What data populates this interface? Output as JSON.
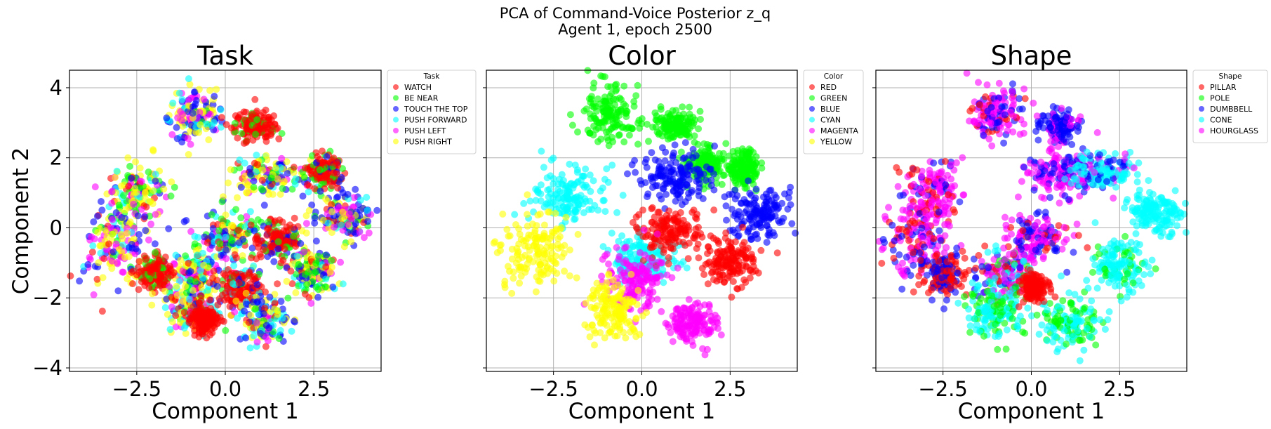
{
  "figure": {
    "title_line1": "PCA of Command-Voice Posterior z_q",
    "title_line2": "Agent 1, epoch 2500"
  },
  "chart_data": [
    {
      "type": "scatter",
      "title": "Task",
      "xlabel": "Component 1",
      "ylabel": "Component 2",
      "xlim": [
        -4.4,
        4.4
      ],
      "ylim": [
        -4.1,
        4.5
      ],
      "xticks": [
        -2.5,
        0.0,
        2.5
      ],
      "xtick_labels": [
        "−2.5",
        "0.0",
        "2.5"
      ],
      "yticks": [
        -4,
        -2,
        0,
        2,
        4
      ],
      "ytick_labels": [
        "−4",
        "−2",
        "0",
        "2",
        "4"
      ],
      "grid": true,
      "legend": {
        "title": "Task",
        "placement": "outside-upper-right",
        "entries": [
          {
            "label": "WATCH",
            "color": "#ff0000"
          },
          {
            "label": "BE NEAR",
            "color": "#00ff00"
          },
          {
            "label": "TOUCH THE TOP",
            "color": "#0000ff"
          },
          {
            "label": "PUSH FORWARD",
            "color": "#00ffff"
          },
          {
            "label": "PUSH LEFT",
            "color": "#ff00ff"
          },
          {
            "label": "PUSH RIGHT",
            "color": "#ffff00"
          }
        ]
      },
      "clusters": [
        {
          "cx": -0.9,
          "cy": 3.2,
          "sx": 0.35,
          "sy": 0.35,
          "mix": [
            0,
            1,
            3,
            1,
            2,
            4
          ]
        },
        {
          "cx": 0.9,
          "cy": 2.9,
          "sx": 0.3,
          "sy": 0.2,
          "mix": [
            6,
            1,
            0,
            0,
            0,
            0
          ]
        },
        {
          "cx": -2.5,
          "cy": 1.0,
          "sx": 0.4,
          "sy": 0.4,
          "mix": [
            1,
            2,
            1,
            1,
            1,
            3
          ]
        },
        {
          "cx": 1.2,
          "cy": 1.5,
          "sx": 0.5,
          "sy": 0.3,
          "mix": [
            1,
            2,
            3,
            1,
            1,
            4
          ]
        },
        {
          "cx": 2.8,
          "cy": 1.6,
          "sx": 0.25,
          "sy": 0.25,
          "mix": [
            5,
            2,
            1,
            0,
            0,
            0
          ]
        },
        {
          "cx": 3.3,
          "cy": 0.3,
          "sx": 0.45,
          "sy": 0.35,
          "mix": [
            1,
            1,
            3,
            1,
            2,
            3
          ]
        },
        {
          "cx": -3.1,
          "cy": -0.5,
          "sx": 0.45,
          "sy": 0.5,
          "mix": [
            1,
            1,
            2,
            2,
            3,
            3
          ]
        },
        {
          "cx": 0.1,
          "cy": -0.3,
          "sx": 0.4,
          "sy": 0.4,
          "mix": [
            1,
            2,
            2,
            2,
            1,
            2
          ]
        },
        {
          "cx": 1.5,
          "cy": -0.4,
          "sx": 0.3,
          "sy": 0.3,
          "mix": [
            5,
            1,
            1,
            0,
            0,
            0
          ]
        },
        {
          "cx": 2.5,
          "cy": -1.2,
          "sx": 0.3,
          "sy": 0.3,
          "mix": [
            1,
            2,
            2,
            1,
            1,
            3
          ]
        },
        {
          "cx": -0.8,
          "cy": -1.3,
          "sx": 0.35,
          "sy": 0.4,
          "mix": [
            1,
            1,
            1,
            2,
            2,
            3
          ]
        },
        {
          "cx": 0.4,
          "cy": -1.7,
          "sx": 0.3,
          "sy": 0.3,
          "mix": [
            5,
            1,
            1,
            1,
            0,
            0
          ]
        },
        {
          "cx": -2.0,
          "cy": -1.3,
          "sx": 0.25,
          "sy": 0.25,
          "mix": [
            4,
            1,
            0,
            0,
            0,
            0
          ]
        },
        {
          "cx": -1.0,
          "cy": -2.3,
          "sx": 0.35,
          "sy": 0.35,
          "mix": [
            1,
            1,
            1,
            2,
            1,
            3
          ]
        },
        {
          "cx": 1.1,
          "cy": -2.6,
          "sx": 0.35,
          "sy": 0.35,
          "mix": [
            1,
            1,
            3,
            2,
            1,
            3
          ]
        },
        {
          "cx": -0.6,
          "cy": -2.6,
          "sx": 0.2,
          "sy": 0.2,
          "mix": [
            4,
            0,
            0,
            0,
            0,
            0
          ]
        }
      ]
    },
    {
      "type": "scatter",
      "title": "Color",
      "xlabel": "Component 1",
      "ylabel": "",
      "xlim": [
        -4.4,
        4.4
      ],
      "ylim": [
        -4.1,
        4.5
      ],
      "xticks": [
        -2.5,
        0.0,
        2.5
      ],
      "xtick_labels": [
        "−2.5",
        "0.0",
        "2.5"
      ],
      "yticks": [
        -4,
        -2,
        0,
        2,
        4
      ],
      "ytick_labels": [],
      "grid": true,
      "legend": {
        "title": "Color",
        "placement": "outside-upper-right",
        "entries": [
          {
            "label": "RED",
            "color": "#ff0000"
          },
          {
            "label": "GREEN",
            "color": "#00ff00"
          },
          {
            "label": "BLUE",
            "color": "#0000ff"
          },
          {
            "label": "CYAN",
            "color": "#00ffff"
          },
          {
            "label": "MAGENTA",
            "color": "#ff00ff"
          },
          {
            "label": "YELLOW",
            "color": "#ffff00"
          }
        ]
      },
      "clusters": [
        {
          "cx": -0.9,
          "cy": 3.3,
          "sx": 0.4,
          "sy": 0.4,
          "mix": [
            0,
            1,
            0,
            0,
            0,
            0
          ]
        },
        {
          "cx": 0.9,
          "cy": 2.9,
          "sx": 0.3,
          "sy": 0.2,
          "mix": [
            0,
            1,
            0,
            0,
            0,
            0
          ]
        },
        {
          "cx": 1.8,
          "cy": 1.8,
          "sx": 0.3,
          "sy": 0.25,
          "mix": [
            0,
            1,
            0,
            0,
            0,
            0
          ]
        },
        {
          "cx": 2.9,
          "cy": 1.7,
          "sx": 0.2,
          "sy": 0.25,
          "mix": [
            0,
            1,
            0,
            0,
            0,
            0
          ]
        },
        {
          "cx": 1.0,
          "cy": 1.5,
          "sx": 0.55,
          "sy": 0.35,
          "mix": [
            0,
            0,
            1,
            0,
            0,
            0
          ]
        },
        {
          "cx": 3.3,
          "cy": 0.4,
          "sx": 0.45,
          "sy": 0.35,
          "mix": [
            0,
            0,
            1,
            0,
            0,
            0
          ]
        },
        {
          "cx": -2.1,
          "cy": 0.9,
          "sx": 0.5,
          "sy": 0.45,
          "mix": [
            0,
            0,
            0,
            1,
            0,
            0
          ]
        },
        {
          "cx": 0.1,
          "cy": -0.9,
          "sx": 0.45,
          "sy": 0.35,
          "mix": [
            0,
            0,
            0,
            1,
            0,
            0
          ]
        },
        {
          "cx": 0.8,
          "cy": -0.1,
          "sx": 0.5,
          "sy": 0.35,
          "mix": [
            1,
            0,
            0,
            0,
            0,
            0
          ]
        },
        {
          "cx": 2.5,
          "cy": -1.0,
          "sx": 0.35,
          "sy": 0.35,
          "mix": [
            1,
            0,
            0,
            0,
            0,
            0
          ]
        },
        {
          "cx": -0.1,
          "cy": -1.5,
          "sx": 0.45,
          "sy": 0.4,
          "mix": [
            0,
            0,
            0,
            0,
            1,
            0
          ]
        },
        {
          "cx": 1.4,
          "cy": -2.7,
          "sx": 0.35,
          "sy": 0.3,
          "mix": [
            0,
            0,
            0,
            0,
            1,
            0
          ]
        },
        {
          "cx": -3.0,
          "cy": -0.6,
          "sx": 0.5,
          "sy": 0.6,
          "mix": [
            0,
            0,
            0,
            0,
            0,
            1
          ]
        },
        {
          "cx": -0.8,
          "cy": -2.4,
          "sx": 0.4,
          "sy": 0.4,
          "mix": [
            0,
            0,
            0,
            0,
            0,
            1
          ]
        }
      ]
    },
    {
      "type": "scatter",
      "title": "Shape",
      "xlabel": "Component 1",
      "ylabel": "",
      "xlim": [
        -4.4,
        4.4
      ],
      "ylim": [
        -4.1,
        4.5
      ],
      "xticks": [
        -2.5,
        0.0,
        2.5
      ],
      "xtick_labels": [
        "−2.5",
        "0.0",
        "2.5"
      ],
      "yticks": [
        -4,
        -2,
        0,
        2,
        4
      ],
      "ytick_labels": [],
      "grid": true,
      "legend": {
        "title": "Shape",
        "placement": "outside-upper-right",
        "entries": [
          {
            "label": "PILLAR",
            "color": "#ff0000"
          },
          {
            "label": "POLE",
            "color": "#00ff00"
          },
          {
            "label": "DUMBBELL",
            "color": "#0000ff"
          },
          {
            "label": "CONE",
            "color": "#00ffff"
          },
          {
            "label": "HOURGLASS",
            "color": "#ff00ff"
          }
        ]
      },
      "clusters": [
        {
          "cx": -1.0,
          "cy": 3.3,
          "sx": 0.35,
          "sy": 0.35,
          "mix": [
            1,
            0,
            2,
            0,
            4
          ]
        },
        {
          "cx": 0.8,
          "cy": 2.9,
          "sx": 0.25,
          "sy": 0.2,
          "mix": [
            0,
            0,
            3,
            0,
            1
          ]
        },
        {
          "cx": -2.8,
          "cy": 1.0,
          "sx": 0.45,
          "sy": 0.45,
          "mix": [
            1,
            0,
            1,
            0,
            4
          ]
        },
        {
          "cx": 0.8,
          "cy": 1.6,
          "sx": 0.5,
          "sy": 0.35,
          "mix": [
            0,
            0,
            2,
            0,
            4
          ]
        },
        {
          "cx": 2.0,
          "cy": 1.6,
          "sx": 0.45,
          "sy": 0.3,
          "mix": [
            0,
            0,
            1,
            3,
            1
          ]
        },
        {
          "cx": 3.5,
          "cy": 0.4,
          "sx": 0.4,
          "sy": 0.3,
          "mix": [
            0,
            0,
            0,
            1,
            0
          ]
        },
        {
          "cx": -3.3,
          "cy": -0.3,
          "sx": 0.5,
          "sy": 0.5,
          "mix": [
            1,
            0,
            1,
            0,
            3
          ]
        },
        {
          "cx": -2.5,
          "cy": -1.3,
          "sx": 0.35,
          "sy": 0.3,
          "mix": [
            2,
            0,
            2,
            0,
            0
          ]
        },
        {
          "cx": 0.1,
          "cy": -0.3,
          "sx": 0.5,
          "sy": 0.4,
          "mix": [
            1,
            0,
            2,
            0,
            3
          ]
        },
        {
          "cx": 2.5,
          "cy": -1.1,
          "sx": 0.35,
          "sy": 0.35,
          "mix": [
            0,
            1,
            0,
            3,
            0
          ]
        },
        {
          "cx": -0.8,
          "cy": -1.4,
          "sx": 0.4,
          "sy": 0.4,
          "mix": [
            1,
            1,
            1,
            2,
            3
          ]
        },
        {
          "cx": -1.0,
          "cy": -2.4,
          "sx": 0.45,
          "sy": 0.35,
          "mix": [
            0,
            2,
            0,
            3,
            0
          ]
        },
        {
          "cx": 1.1,
          "cy": -2.7,
          "sx": 0.45,
          "sy": 0.35,
          "mix": [
            0,
            2,
            0,
            3,
            0
          ]
        },
        {
          "cx": 0.1,
          "cy": -1.7,
          "sx": 0.2,
          "sy": 0.2,
          "mix": [
            1,
            0,
            0,
            0,
            0
          ]
        }
      ]
    }
  ]
}
